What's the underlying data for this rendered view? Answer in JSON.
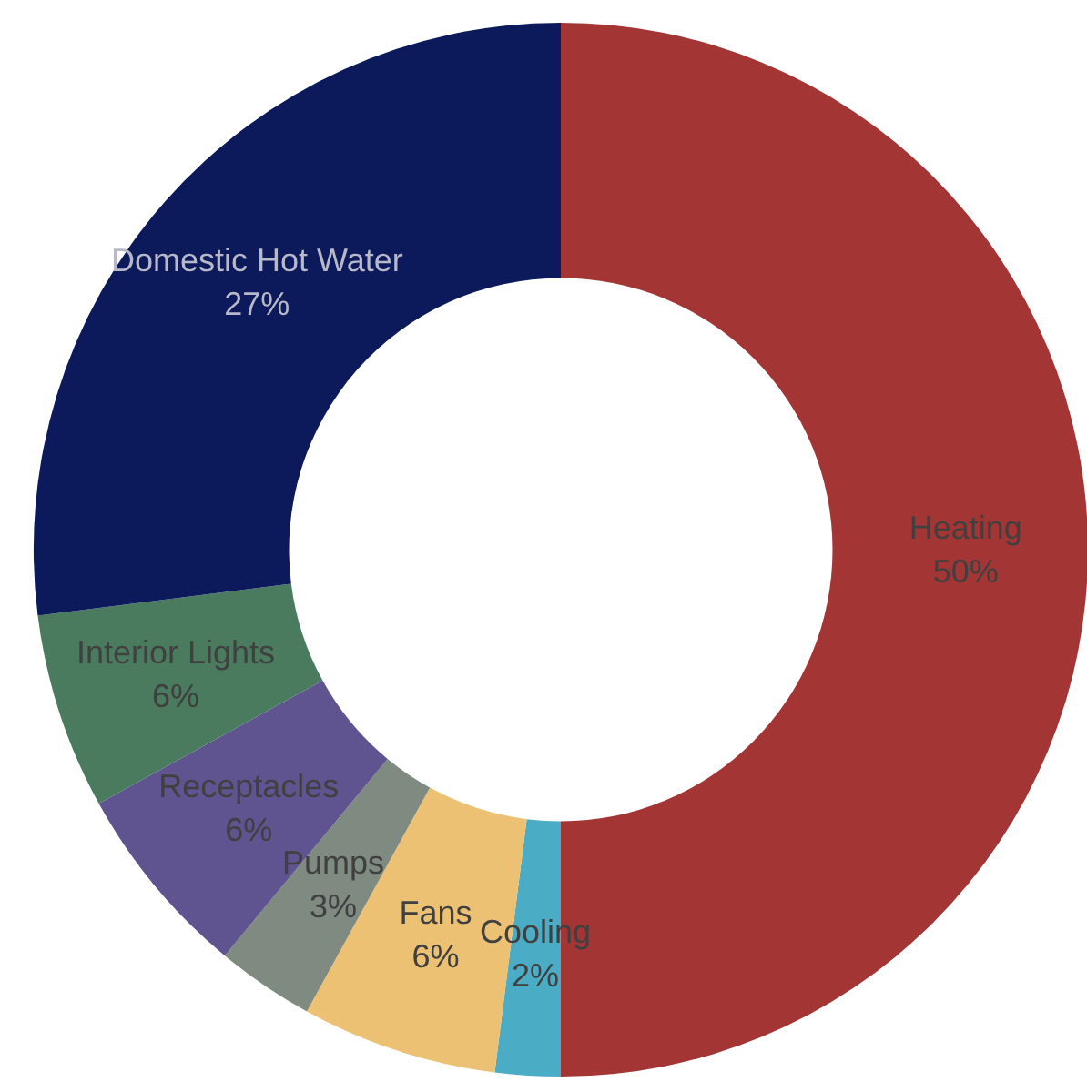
{
  "chart_data": {
    "type": "donut",
    "categories": [
      "Heating",
      "Cooling",
      "Fans",
      "Pumps",
      "Receptacles",
      "Interior Lights",
      "Domestic Hot Water"
    ],
    "values": [
      50,
      2,
      6,
      3,
      6,
      6,
      27
    ],
    "colors": [
      "#a33535",
      "#4bacc6",
      "#ecc174",
      "#7f8a80",
      "#5f5490",
      "#4a7b5e",
      "#0c1a5c"
    ],
    "value_labels": [
      "50%",
      "2%",
      "6%",
      "3%",
      "6%",
      "6%",
      "27%"
    ],
    "legend": false
  }
}
